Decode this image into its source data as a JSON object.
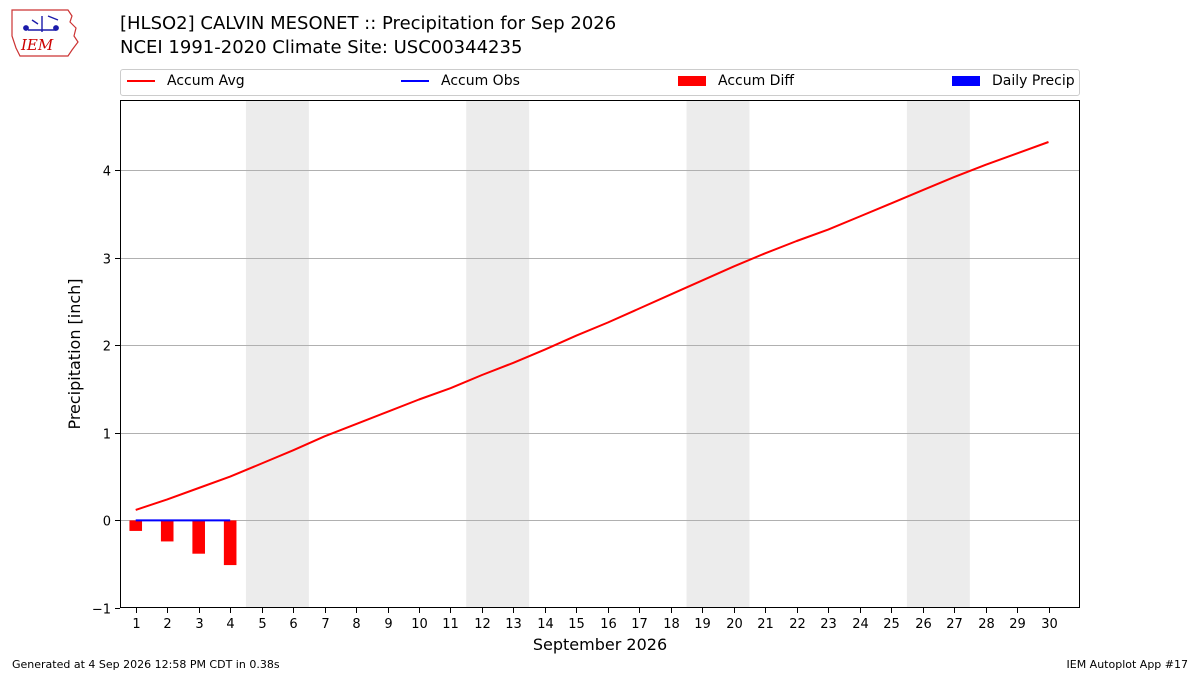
{
  "header": {
    "logo_text": "IEM",
    "title_line1": "[HLSO2] CALVIN MESONET :: Precipitation for Sep 2026",
    "title_line2": "NCEI 1991-2020 Climate Site: USC00344235"
  },
  "legend": {
    "items": [
      {
        "label": "Accum Avg",
        "kind": "line",
        "color": "#ff0000"
      },
      {
        "label": "Accum Obs",
        "kind": "line",
        "color": "#0000ff"
      },
      {
        "label": "Accum Diff",
        "kind": "box",
        "color": "#ff0000"
      },
      {
        "label": "Daily Precip",
        "kind": "box",
        "color": "#0000ff"
      }
    ]
  },
  "chart_data": {
    "type": "line",
    "title": "[HLSO2] CALVIN MESONET :: Precipitation for Sep 2026",
    "subtitle": "NCEI 1991-2020 Climate Site: USC00344235",
    "xlabel": "September 2026",
    "ylabel": "Precipitation [inch]",
    "xlim": [
      0.5,
      31.0
    ],
    "ylim": [
      -1.0,
      4.8
    ],
    "x_ticks": [
      1,
      2,
      3,
      4,
      5,
      6,
      7,
      8,
      9,
      10,
      11,
      12,
      13,
      14,
      15,
      16,
      17,
      18,
      19,
      20,
      21,
      22,
      23,
      24,
      25,
      26,
      27,
      28,
      29,
      30
    ],
    "y_ticks": [
      -1,
      0,
      1,
      2,
      3,
      4
    ],
    "y_tick_labels": [
      "−1",
      "0",
      "1",
      "2",
      "3",
      "4"
    ],
    "grid": "horizontal",
    "weekend_shading": [
      [
        4.5,
        6.5
      ],
      [
        11.5,
        13.5
      ],
      [
        18.5,
        20.5
      ],
      [
        25.5,
        27.5
      ]
    ],
    "shading_color": "#ececec",
    "series": [
      {
        "name": "Accum Avg",
        "kind": "line",
        "color": "#ff0000",
        "x": [
          1,
          2,
          3,
          4,
          5,
          6,
          7,
          8,
          9,
          10,
          11,
          12,
          13,
          14,
          15,
          16,
          17,
          18,
          19,
          20,
          21,
          22,
          23,
          24,
          25,
          26,
          27,
          28,
          29,
          30
        ],
        "values": [
          0.12,
          0.24,
          0.37,
          0.5,
          0.65,
          0.8,
          0.96,
          1.1,
          1.24,
          1.38,
          1.51,
          1.66,
          1.8,
          1.95,
          2.11,
          2.26,
          2.42,
          2.58,
          2.74,
          2.9,
          3.05,
          3.19,
          3.32,
          3.47,
          3.62,
          3.77,
          3.92,
          4.06,
          4.19,
          4.32
        ]
      },
      {
        "name": "Accum Obs",
        "kind": "line",
        "color": "#0000ff",
        "x": [
          1,
          2,
          3,
          4
        ],
        "values": [
          0.0,
          0.0,
          0.0,
          0.0
        ]
      },
      {
        "name": "Accum Diff",
        "kind": "bar",
        "color": "#ff0000",
        "x": [
          1,
          2,
          3,
          4
        ],
        "values": [
          -0.12,
          -0.24,
          -0.38,
          -0.51
        ]
      },
      {
        "name": "Daily Precip",
        "kind": "bar",
        "color": "#0000ff",
        "x": [
          1,
          2,
          3,
          4
        ],
        "values": [
          0.0,
          0.0,
          0.0,
          0.0
        ]
      }
    ]
  },
  "footer": {
    "left": "Generated at 4 Sep 2026 12:58 PM CDT in 0.38s",
    "right": "IEM Autoplot App #17"
  }
}
